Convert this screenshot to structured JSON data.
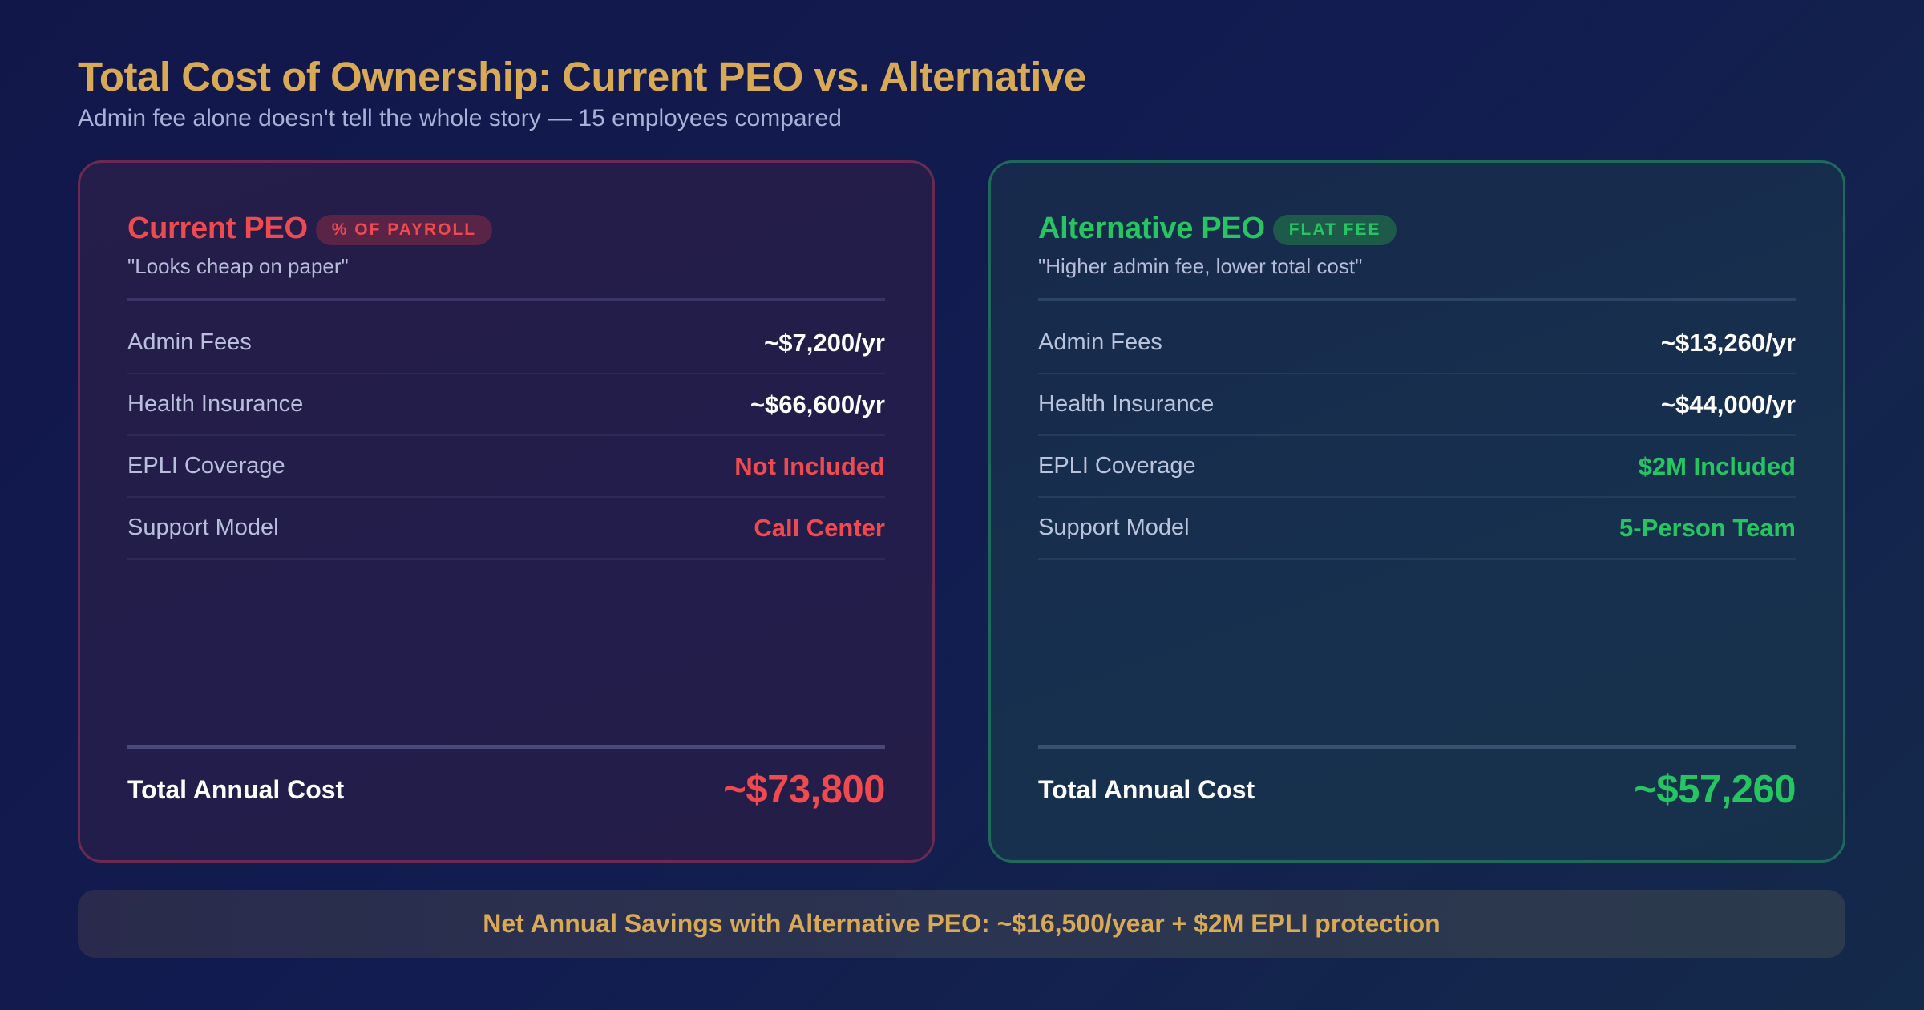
{
  "header": {
    "title": "Total Cost of Ownership: Current PEO vs. Alternative",
    "subtitle": "Admin fee alone doesn't tell the whole story — 15 employees compared"
  },
  "current": {
    "name": "Current PEO",
    "badge": "% OF PAYROLL",
    "tagline": "\"Looks cheap on paper\"",
    "rows": [
      {
        "label": "Admin Fees",
        "value": "~$7,200/yr",
        "status": "neutral"
      },
      {
        "label": "Health Insurance",
        "value": "~$66,600/yr",
        "status": "neutral"
      },
      {
        "label": "EPLI Coverage",
        "value": "Not Included",
        "status": "bad"
      },
      {
        "label": "Support Model",
        "value": "Call Center",
        "status": "bad"
      }
    ],
    "total_label": "Total Annual Cost",
    "total_value": "~$73,800",
    "accent": "#ef4a4f"
  },
  "alternative": {
    "name": "Alternative PEO",
    "badge": "FLAT FEE",
    "tagline": "\"Higher admin fee, lower total cost\"",
    "rows": [
      {
        "label": "Admin Fees",
        "value": "~$13,260/yr",
        "status": "neutral"
      },
      {
        "label": "Health Insurance",
        "value": "~$44,000/yr",
        "status": "neutral"
      },
      {
        "label": "EPLI Coverage",
        "value": "$2M Included",
        "status": "good"
      },
      {
        "label": "Support Model",
        "value": "5-Person Team",
        "status": "good"
      }
    ],
    "total_label": "Total Annual Cost",
    "total_value": "~$57,260",
    "accent": "#25c562"
  },
  "savings": {
    "text": "Net Annual Savings with Alternative PEO: ~$16,500/year + $2M EPLI protection",
    "accent": "#d9aa55"
  }
}
